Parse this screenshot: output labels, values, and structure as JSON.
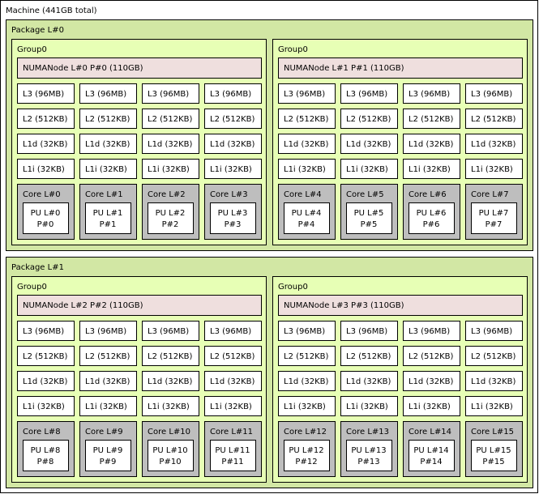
{
  "machine": {
    "label": "Machine (441GB total)",
    "packages": [
      {
        "label": "Package L#0",
        "groups": [
          {
            "label": "Group0",
            "numa": "NUMANode L#0 P#0 (110GB)",
            "l3": [
              "L3 (96MB)",
              "L3 (96MB)",
              "L3 (96MB)",
              "L3 (96MB)"
            ],
            "l2": [
              "L2 (512KB)",
              "L2 (512KB)",
              "L2 (512KB)",
              "L2 (512KB)"
            ],
            "l1d": [
              "L1d (32KB)",
              "L1d (32KB)",
              "L1d (32KB)",
              "L1d (32KB)"
            ],
            "l1i": [
              "L1i (32KB)",
              "L1i (32KB)",
              "L1i (32KB)",
              "L1i (32KB)"
            ],
            "cores": [
              {
                "label": "Core L#0",
                "pu": [
                  "PU L#0",
                  "P#0"
                ]
              },
              {
                "label": "Core L#1",
                "pu": [
                  "PU L#1",
                  "P#1"
                ]
              },
              {
                "label": "Core L#2",
                "pu": [
                  "PU L#2",
                  "P#2"
                ]
              },
              {
                "label": "Core L#3",
                "pu": [
                  "PU L#3",
                  "P#3"
                ]
              }
            ]
          },
          {
            "label": "Group0",
            "numa": "NUMANode L#1 P#1 (110GB)",
            "l3": [
              "L3 (96MB)",
              "L3 (96MB)",
              "L3 (96MB)",
              "L3 (96MB)"
            ],
            "l2": [
              "L2 (512KB)",
              "L2 (512KB)",
              "L2 (512KB)",
              "L2 (512KB)"
            ],
            "l1d": [
              "L1d (32KB)",
              "L1d (32KB)",
              "L1d (32KB)",
              "L1d (32KB)"
            ],
            "l1i": [
              "L1i (32KB)",
              "L1i (32KB)",
              "L1i (32KB)",
              "L1i (32KB)"
            ],
            "cores": [
              {
                "label": "Core L#4",
                "pu": [
                  "PU L#4",
                  "P#4"
                ]
              },
              {
                "label": "Core L#5",
                "pu": [
                  "PU L#5",
                  "P#5"
                ]
              },
              {
                "label": "Core L#6",
                "pu": [
                  "PU L#6",
                  "P#6"
                ]
              },
              {
                "label": "Core L#7",
                "pu": [
                  "PU L#7",
                  "P#7"
                ]
              }
            ]
          }
        ]
      },
      {
        "label": "Package L#1",
        "groups": [
          {
            "label": "Group0",
            "numa": "NUMANode L#2 P#2 (110GB)",
            "l3": [
              "L3 (96MB)",
              "L3 (96MB)",
              "L3 (96MB)",
              "L3 (96MB)"
            ],
            "l2": [
              "L2 (512KB)",
              "L2 (512KB)",
              "L2 (512KB)",
              "L2 (512KB)"
            ],
            "l1d": [
              "L1d (32KB)",
              "L1d (32KB)",
              "L1d (32KB)",
              "L1d (32KB)"
            ],
            "l1i": [
              "L1i (32KB)",
              "L1i (32KB)",
              "L1i (32KB)",
              "L1i (32KB)"
            ],
            "cores": [
              {
                "label": "Core L#8",
                "pu": [
                  "PU L#8",
                  "P#8"
                ]
              },
              {
                "label": "Core L#9",
                "pu": [
                  "PU L#9",
                  "P#9"
                ]
              },
              {
                "label": "Core L#10",
                "pu": [
                  "PU L#10",
                  "P#10"
                ]
              },
              {
                "label": "Core L#11",
                "pu": [
                  "PU L#11",
                  "P#11"
                ]
              }
            ]
          },
          {
            "label": "Group0",
            "numa": "NUMANode L#3 P#3 (110GB)",
            "l3": [
              "L3 (96MB)",
              "L3 (96MB)",
              "L3 (96MB)",
              "L3 (96MB)"
            ],
            "l2": [
              "L2 (512KB)",
              "L2 (512KB)",
              "L2 (512KB)",
              "L2 (512KB)"
            ],
            "l1d": [
              "L1d (32KB)",
              "L1d (32KB)",
              "L1d (32KB)",
              "L1d (32KB)"
            ],
            "l1i": [
              "L1i (32KB)",
              "L1i (32KB)",
              "L1i (32KB)",
              "L1i (32KB)"
            ],
            "cores": [
              {
                "label": "Core L#12",
                "pu": [
                  "PU L#12",
                  "P#12"
                ]
              },
              {
                "label": "Core L#13",
                "pu": [
                  "PU L#13",
                  "P#13"
                ]
              },
              {
                "label": "Core L#14",
                "pu": [
                  "PU L#14",
                  "P#14"
                ]
              },
              {
                "label": "Core L#15",
                "pu": [
                  "PU L#15",
                  "P#15"
                ]
              }
            ]
          }
        ]
      }
    ]
  }
}
